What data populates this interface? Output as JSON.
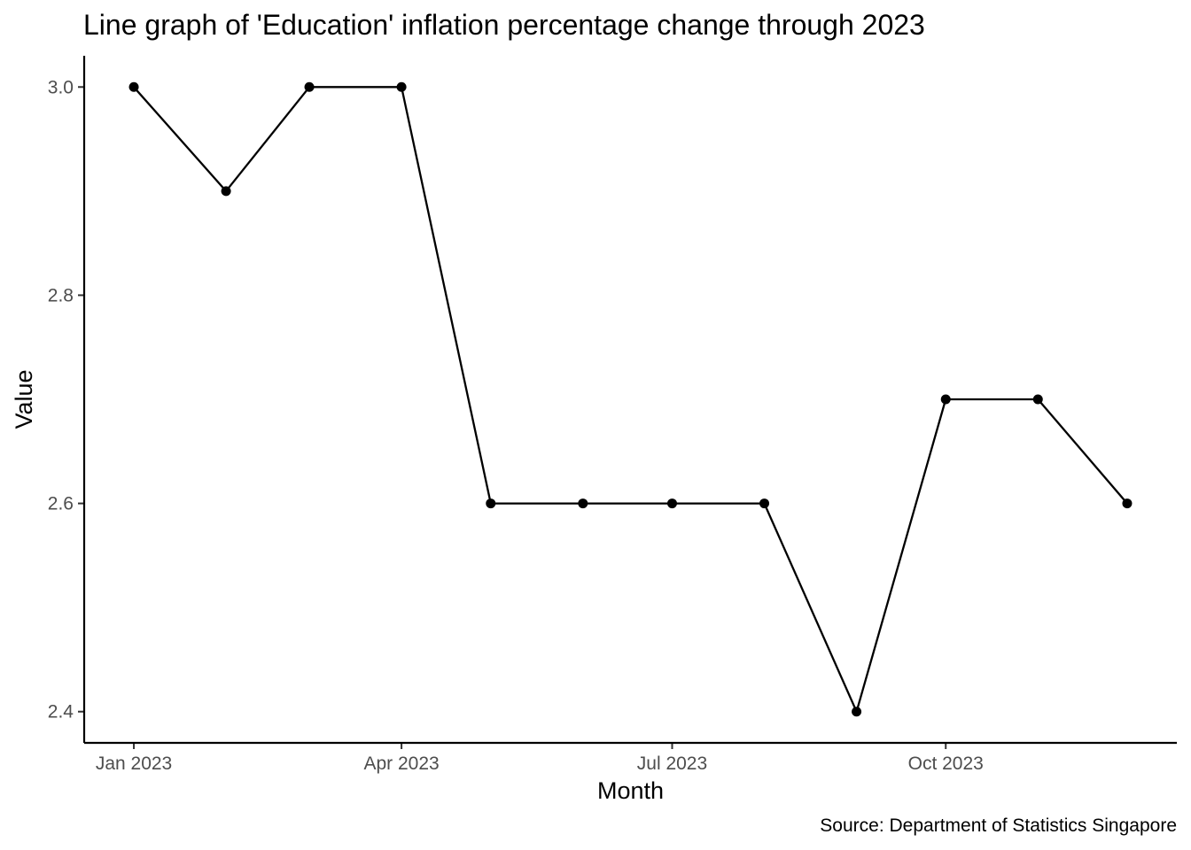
{
  "chart_data": {
    "type": "line",
    "title": "Line graph of 'Education' inflation percentage change through 2023",
    "xlabel": "Month",
    "ylabel": "Value",
    "caption": "Source: Department of Statistics Singapore",
    "x": [
      "2023-01",
      "2023-02",
      "2023-03",
      "2023-04",
      "2023-05",
      "2023-06",
      "2023-07",
      "2023-08",
      "2023-09",
      "2023-10",
      "2023-11",
      "2023-12"
    ],
    "series": [
      {
        "values": [
          3.0,
          2.9,
          3.0,
          3.0,
          2.6,
          2.6,
          2.6,
          2.6,
          2.4,
          2.7,
          2.7,
          2.6
        ],
        "color": "#000000"
      }
    ],
    "x_ticks": [
      {
        "date": "2023-01",
        "label": "Jan 2023"
      },
      {
        "date": "2023-04",
        "label": "Apr 2023"
      },
      {
        "date": "2023-07",
        "label": "Jul 2023"
      },
      {
        "date": "2023-10",
        "label": "Oct 2023"
      }
    ],
    "y_ticks": [
      {
        "value": 2.4,
        "label": "2.4"
      },
      {
        "value": 2.6,
        "label": "2.6"
      },
      {
        "value": 2.8,
        "label": "2.8"
      },
      {
        "value": 3.0,
        "label": "3.0"
      }
    ],
    "ylim": [
      2.37,
      3.03
    ],
    "grid": false,
    "legend": "none"
  }
}
